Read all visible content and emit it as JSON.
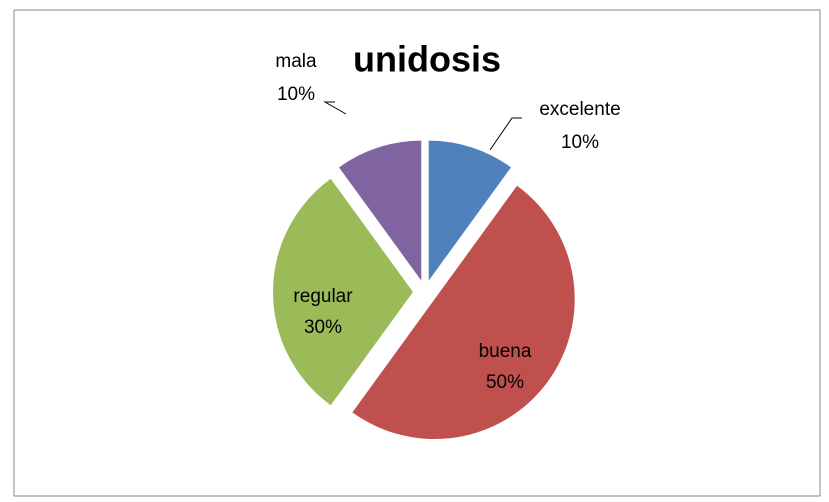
{
  "chart_data": {
    "type": "pie",
    "title": "unidosis",
    "categories": [
      "excelente",
      "buena",
      "regular",
      "mala"
    ],
    "values": [
      10,
      50,
      30,
      10
    ],
    "value_labels": [
      "10%",
      "50%",
      "30%",
      "10%"
    ],
    "colors": [
      "#4f81bd",
      "#c0504d",
      "#9bbb59",
      "#8064a2"
    ],
    "exploded": true
  }
}
